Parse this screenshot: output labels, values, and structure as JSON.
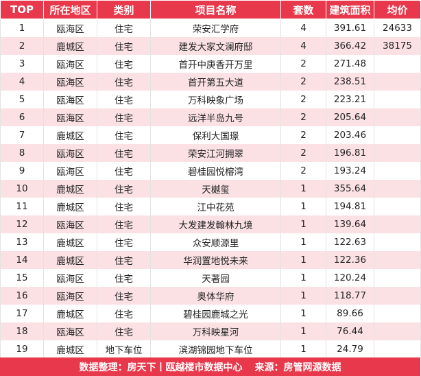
{
  "table": {
    "columns": [
      "TOP",
      "所在地区",
      "类别",
      "项目名称",
      "套数",
      "建筑面积",
      "均价"
    ],
    "rows": [
      [
        "1",
        "瓯海区",
        "住宅",
        "荣安汇学府",
        "4",
        "391.61",
        "24633"
      ],
      [
        "2",
        "鹿城区",
        "住宅",
        "建发大家文澜府邸",
        "4",
        "366.42",
        "38175"
      ],
      [
        "3",
        "瓯海区",
        "住宅",
        "首开中庚香开万里",
        "2",
        "271.48",
        ""
      ],
      [
        "4",
        "瓯海区",
        "住宅",
        "首开第五大道",
        "2",
        "238.51",
        ""
      ],
      [
        "5",
        "瓯海区",
        "住宅",
        "万科映象广场",
        "2",
        "223.21",
        ""
      ],
      [
        "6",
        "瓯海区",
        "住宅",
        "远洋半岛九号",
        "2",
        "205.64",
        ""
      ],
      [
        "7",
        "鹿城区",
        "住宅",
        "保利大国璟",
        "2",
        "203.46",
        ""
      ],
      [
        "8",
        "瓯海区",
        "住宅",
        "荣安江河拥翠",
        "2",
        "196.81",
        ""
      ],
      [
        "9",
        "瓯海区",
        "住宅",
        "碧桂园悦榕湾",
        "2",
        "193.24",
        ""
      ],
      [
        "10",
        "鹿城区",
        "住宅",
        "天樾玺",
        "1",
        "355.64",
        ""
      ],
      [
        "11",
        "鹿城区",
        "住宅",
        "江中花苑",
        "1",
        "194.81",
        ""
      ],
      [
        "12",
        "瓯海区",
        "住宅",
        "大发建发翰林九境",
        "1",
        "139.64",
        ""
      ],
      [
        "13",
        "鹿城区",
        "住宅",
        "众安顺源里",
        "1",
        "122.63",
        ""
      ],
      [
        "14",
        "鹿城区",
        "住宅",
        "华润置地悦未来",
        "1",
        "122.36",
        ""
      ],
      [
        "15",
        "瓯海区",
        "住宅",
        "天著园",
        "1",
        "120.24",
        ""
      ],
      [
        "16",
        "瓯海区",
        "住宅",
        "奥体华府",
        "1",
        "118.77",
        ""
      ],
      [
        "17",
        "鹿城区",
        "住宅",
        "碧桂园鹿城之光",
        "1",
        "89.66",
        ""
      ],
      [
        "18",
        "瓯海区",
        "住宅",
        "万科映星河",
        "1",
        "76.44",
        ""
      ],
      [
        "19",
        "鹿城区",
        "地下车位",
        "滨湖锦园地下车位",
        "1",
        "24.79",
        ""
      ]
    ]
  },
  "footer": {
    "organizer": "数据整理：房天下丨瓯越楼市数据中心",
    "source": "来源：房管网源数据"
  },
  "colors": {
    "header_bg": "#e8384b",
    "stripe_bg": "#fbe1e4"
  }
}
